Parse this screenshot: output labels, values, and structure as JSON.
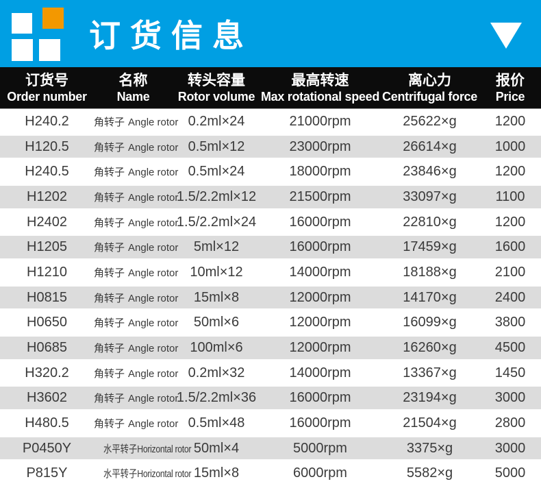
{
  "header": {
    "title": "订货信息",
    "accent_color": "#009fe3",
    "logo_orange": "#f39800"
  },
  "table": {
    "columns": [
      {
        "zh": "订货号",
        "en": "Order number"
      },
      {
        "zh": "名称",
        "en": "Name"
      },
      {
        "zh": "转头容量",
        "en": "Rotor volume"
      },
      {
        "zh": "最高转速",
        "en": "Max rotational speed"
      },
      {
        "zh": "离心力",
        "en": "Centrifugal force"
      },
      {
        "zh": "报价",
        "en": "Price"
      }
    ],
    "rows": [
      {
        "order": "H240.2",
        "name_zh": "角转子",
        "name_en": "Angle rotor",
        "volume": "0.2ml×24",
        "speed": "21000rpm",
        "force": "25622×g",
        "price": "1200"
      },
      {
        "order": "H120.5",
        "name_zh": "角转子",
        "name_en": "Angle rotor",
        "volume": "0.5ml×12",
        "speed": "23000rpm",
        "force": "26614×g",
        "price": "1000"
      },
      {
        "order": "H240.5",
        "name_zh": "角转子",
        "name_en": "Angle rotor",
        "volume": "0.5ml×24",
        "speed": "18000rpm",
        "force": "23846×g",
        "price": "1200"
      },
      {
        "order": "H1202",
        "name_zh": "角转子",
        "name_en": "Angle rotor",
        "volume": "1.5/2.2ml×12",
        "speed": "21500rpm",
        "force": "33097×g",
        "price": "1100"
      },
      {
        "order": "H2402",
        "name_zh": "角转子",
        "name_en": "Angle rotor",
        "volume": "1.5/2.2ml×24",
        "speed": "16000rpm",
        "force": "22810×g",
        "price": "1200"
      },
      {
        "order": "H1205",
        "name_zh": "角转子",
        "name_en": "Angle rotor",
        "volume": "5ml×12",
        "speed": "16000rpm",
        "force": "17459×g",
        "price": "1600"
      },
      {
        "order": "H1210",
        "name_zh": "角转子",
        "name_en": "Angle rotor",
        "volume": "10ml×12",
        "speed": "14000rpm",
        "force": "18188×g",
        "price": "2100"
      },
      {
        "order": "H0815",
        "name_zh": "角转子",
        "name_en": "Angle rotor",
        "volume": "15ml×8",
        "speed": "12000rpm",
        "force": "14170×g",
        "price": "2400"
      },
      {
        "order": "H0650",
        "name_zh": "角转子",
        "name_en": "Angle rotor",
        "volume": "50ml×6",
        "speed": "12000rpm",
        "force": "16099×g",
        "price": "3800"
      },
      {
        "order": "H0685",
        "name_zh": "角转子",
        "name_en": "Angle rotor",
        "volume": "100ml×6",
        "speed": "12000rpm",
        "force": "16260×g",
        "price": "4500"
      },
      {
        "order": "H320.2",
        "name_zh": "角转子",
        "name_en": "Angle rotor",
        "volume": "0.2ml×32",
        "speed": "14000rpm",
        "force": "13367×g",
        "price": "1450"
      },
      {
        "order": "H3602",
        "name_zh": "角转子",
        "name_en": "Angle rotor",
        "volume": "1.5/2.2ml×36",
        "speed": "16000rpm",
        "force": "23194×g",
        "price": "3000"
      },
      {
        "order": "H480.5",
        "name_zh": "角转子",
        "name_en": "Angle rotor",
        "volume": "0.5ml×48",
        "speed": "16000rpm",
        "force": "21504×g",
        "price": "2800"
      },
      {
        "order": "P0450Y",
        "name_zh": "水平转子",
        "name_en": "Horizontal rotor",
        "volume": "50ml×4",
        "speed": "5000rpm",
        "force": "3375×g",
        "price": "3000"
      },
      {
        "order": "P815Y",
        "name_zh": "水平转子",
        "name_en": "Horizontal rotor",
        "volume": "15ml×8",
        "speed": "6000rpm",
        "force": "5582×g",
        "price": "5000"
      }
    ]
  }
}
